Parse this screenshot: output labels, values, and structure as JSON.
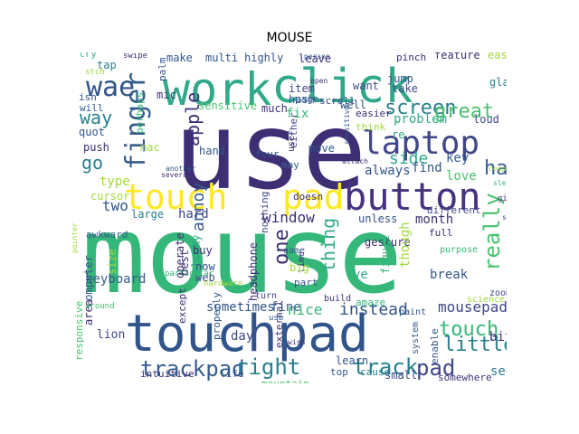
{
  "title": "MOUSE",
  "palette": [
    "#440154",
    "#46327e",
    "#365c8d",
    "#277f8e",
    "#1fa187",
    "#4ac16d",
    "#a0da39",
    "#fde725"
  ],
  "words": [
    {
      "text": "mouse",
      "color": "#35b779"
    },
    {
      "text": "use",
      "color": "#3e2f74"
    },
    {
      "text": "touchpad",
      "color": "#31548b"
    },
    {
      "text": "click",
      "color": "#2fa98a"
    },
    {
      "text": "work",
      "color": "#2fa98a"
    },
    {
      "text": "button",
      "color": "#46327e"
    },
    {
      "text": "touch",
      "color": "#fde725"
    },
    {
      "text": "pad",
      "color": "#fde725"
    },
    {
      "text": "laptop",
      "color": "#3f4788"
    },
    {
      "text": "finger",
      "color": "#365c8d"
    },
    {
      "text": "wae",
      "color": "#31548b"
    },
    {
      "text": "trackpad",
      "color": "#365c8d"
    },
    {
      "text": "track",
      "color": "#277f8e"
    },
    {
      "text": "pad",
      "color": "#3f4788"
    },
    {
      "text": "right",
      "color": "#277f8e"
    },
    {
      "text": "screen",
      "color": "#277f8e"
    },
    {
      "text": "great",
      "color": "#4ac16d"
    },
    {
      "text": "really",
      "color": "#4ac16d"
    },
    {
      "text": "ha",
      "color": "#365c8d"
    },
    {
      "text": "touch",
      "color": "#35b779"
    },
    {
      "text": "little",
      "color": "#277f8e"
    },
    {
      "text": "one",
      "color": "#3e2f74"
    },
    {
      "text": "thing",
      "color": "#2fa98a"
    },
    {
      "text": "annoy",
      "color": "#365c8d"
    },
    {
      "text": "apple",
      "color": "#3e2f74"
    },
    {
      "text": "way",
      "color": "#277f8e"
    },
    {
      "text": "go",
      "color": "#277f8e"
    },
    {
      "text": "two",
      "color": "#31548b"
    },
    {
      "text": "type",
      "color": "#a0da39"
    },
    {
      "text": "mousepad",
      "color": "#3f4788"
    },
    {
      "text": "instead",
      "color": "#31548b"
    },
    {
      "text": "nice",
      "color": "#35b779"
    },
    {
      "text": "keyboard",
      "color": "#365c8d"
    },
    {
      "text": "sometimes",
      "color": "#31548b"
    },
    {
      "text": "window",
      "color": "#3e2f74"
    },
    {
      "text": "side",
      "color": "#2fa98a"
    },
    {
      "text": "always",
      "color": "#31548b"
    },
    {
      "text": "find",
      "color": "#31548b"
    },
    {
      "text": "key",
      "color": "#365c8d"
    },
    {
      "text": "love",
      "color": "#4ac16d"
    },
    {
      "text": "hard",
      "color": "#3f4788"
    },
    {
      "text": "large",
      "color": "#277f8e"
    },
    {
      "text": "hand",
      "color": "#31548b"
    },
    {
      "text": "mac",
      "color": "#a0da39"
    },
    {
      "text": "problem",
      "color": "#2fa98a"
    },
    {
      "text": "month",
      "color": "#3e2f74"
    },
    {
      "text": "break",
      "color": "#31548b"
    },
    {
      "text": "bite",
      "color": "#3e2f74"
    },
    {
      "text": "see",
      "color": "#277f8e"
    },
    {
      "text": "day",
      "color": "#3f4788"
    },
    {
      "text": "fine",
      "color": "#365c8d"
    },
    {
      "text": "learn",
      "color": "#31548b"
    },
    {
      "text": "ve",
      "color": "#2fa98a"
    },
    {
      "text": "feature",
      "color": "#3e2f74"
    },
    {
      "text": "easy",
      "color": "#a0da39"
    },
    {
      "text": "glass",
      "color": "#277f8e"
    },
    {
      "text": "jump",
      "color": "#31548b"
    },
    {
      "text": "take",
      "color": "#3f4788"
    },
    {
      "text": "leave",
      "color": "#3e2f74"
    },
    {
      "text": "want",
      "color": "#3f4788"
    },
    {
      "text": "make",
      "color": "#31548b"
    },
    {
      "text": "multi",
      "color": "#31548b"
    },
    {
      "text": "highly",
      "color": "#31548b"
    },
    {
      "text": "tap",
      "color": "#277f8e"
    },
    {
      "text": "mic",
      "color": "#3e2f74"
    },
    {
      "text": "palm",
      "color": "#31548b"
    },
    {
      "text": "sensitive",
      "color": "#4ac16d"
    },
    {
      "text": "much",
      "color": "#3e2f74"
    },
    {
      "text": "item",
      "color": "#3f4788"
    },
    {
      "text": "hash",
      "color": "#365c8d"
    },
    {
      "text": "fix",
      "color": "#35b779"
    },
    {
      "text": "quot",
      "color": "#31548b"
    },
    {
      "text": "push",
      "color": "#3e2f74"
    },
    {
      "text": "perhaps",
      "color": "#35b779"
    },
    {
      "text": "cursor",
      "color": "#a0da39"
    },
    {
      "text": "awkward",
      "color": "#365c8d"
    },
    {
      "text": "gesture",
      "color": "#3e2f74"
    },
    {
      "text": "though",
      "color": "#a0da39"
    },
    {
      "text": "unless",
      "color": "#31548b"
    },
    {
      "text": "different",
      "color": "#3f4788"
    },
    {
      "text": "full",
      "color": "#3e2f74"
    },
    {
      "text": "computer",
      "color": "#31548b"
    },
    {
      "text": "operate",
      "color": "#3e2f74"
    },
    {
      "text": "best",
      "color": "#3e2f74"
    },
    {
      "text": "clunky",
      "color": "#2fa98a"
    },
    {
      "text": "headphone",
      "color": "#3e2f74"
    },
    {
      "text": "nothing",
      "color": "#3f4788"
    },
    {
      "text": "buy",
      "color": "#3e2f74"
    },
    {
      "text": "now",
      "color": "#31548b"
    },
    {
      "text": "web",
      "color": "#3f4788"
    },
    {
      "text": "except",
      "color": "#3e2f74"
    },
    {
      "text": "properly",
      "color": "#31548b"
    },
    {
      "text": "lion",
      "color": "#3f4788"
    },
    {
      "text": "size",
      "color": "#a0da39"
    },
    {
      "text": "area",
      "color": "#3e2f74"
    },
    {
      "text": "responsive",
      "color": "#4ac16d"
    },
    {
      "text": "intuitive",
      "color": "#3e2f74"
    },
    {
      "text": "life",
      "color": "#31548b"
    },
    {
      "text": "mountain",
      "color": "#4ac16d"
    },
    {
      "text": "external",
      "color": "#3e2f74"
    },
    {
      "text": "small",
      "color": "#3f4788"
    },
    {
      "text": "cause",
      "color": "#277f8e"
    },
    {
      "text": "top",
      "color": "#31548b"
    },
    {
      "text": "somewhere",
      "color": "#3e2f74"
    },
    {
      "text": "enable",
      "color": "#31548b"
    },
    {
      "text": "awesome",
      "color": "#a0da39"
    },
    {
      "text": "certain",
      "color": "#4ac16d"
    },
    {
      "text": "zoom",
      "color": "#3f4788"
    },
    {
      "text": "system",
      "color": "#365c8d"
    },
    {
      "text": "doesn",
      "color": "#3e2f74"
    },
    {
      "text": "move",
      "color": "#31548b"
    },
    {
      "text": "either",
      "color": "#3f4788"
    },
    {
      "text": "four",
      "color": "#31548b"
    },
    {
      "text": "may",
      "color": "#365c8d"
    },
    {
      "text": "user",
      "color": "#3e2f74"
    },
    {
      "text": "page",
      "color": "#365c8d"
    },
    {
      "text": "scroll",
      "color": "#3f4788"
    },
    {
      "text": "easier",
      "color": "#3e2f74"
    },
    {
      "text": "loud",
      "color": "#3f4788"
    },
    {
      "text": "well",
      "color": "#31548b"
    },
    {
      "text": "pinch",
      "color": "#3e2f74"
    },
    {
      "text": "re",
      "color": "#2fa98a"
    },
    {
      "text": "think",
      "color": "#a0da39"
    },
    {
      "text": "figure",
      "color": "#35b779"
    },
    {
      "text": "isn",
      "color": "#31548b"
    },
    {
      "text": "will",
      "color": "#365c8d"
    },
    {
      "text": "try",
      "color": "#35b779"
    },
    {
      "text": "game",
      "color": "#365c8d"
    },
    {
      "text": "time",
      "color": "#3e2f74"
    },
    {
      "text": "big",
      "color": "#a0da39"
    },
    {
      "text": "part",
      "color": "#31548b"
    },
    {
      "text": "turn",
      "color": "#3f4788"
    },
    {
      "text": "purpose",
      "color": "#35b779"
    },
    {
      "text": "build",
      "color": "#3e2f74"
    },
    {
      "text": "science",
      "color": "#a0da39"
    },
    {
      "text": "paint",
      "color": "#31548b"
    },
    {
      "text": "amaze",
      "color": "#35b779"
    },
    {
      "text": "attach",
      "color": "#3e2f74"
    },
    {
      "text": "student",
      "color": "#31548b"
    },
    {
      "text": "sleek",
      "color": "#35b779"
    },
    {
      "text": "hardware",
      "color": "#a0da39"
    },
    {
      "text": "around",
      "color": "#4ac16d"
    },
    {
      "text": "give",
      "color": "#3e2f74"
    },
    {
      "text": "respond",
      "color": "#a0da39"
    },
    {
      "text": "sensitive",
      "color": "#31548b"
    },
    {
      "text": "swipe",
      "color": "#3e2f74"
    },
    {
      "text": "stch",
      "color": "#a0da39"
    },
    {
      "text": "person",
      "color": "#31548b"
    },
    {
      "text": "open",
      "color": "#3e2f74"
    },
    {
      "text": "another",
      "color": "#31548b"
    },
    {
      "text": "several",
      "color": "#3e2f74"
    },
    {
      "text": "tweaked",
      "color": "#3f4788"
    },
    {
      "text": "particular",
      "color": "#35b779"
    },
    {
      "text": "usb",
      "color": "#365c8d"
    },
    {
      "text": "wish",
      "color": "#3e2f74"
    },
    {
      "text": "pointer",
      "color": "#a0da39"
    }
  ]
}
